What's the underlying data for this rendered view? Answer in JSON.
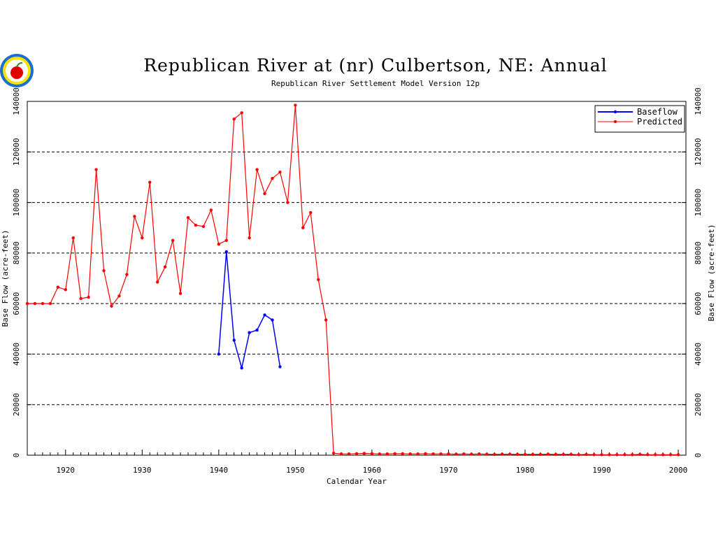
{
  "chart_data": {
    "type": "line",
    "title": "Republican River at (nr) Culbertson, NE: Annual",
    "subtitle": "Republican River Settlement Model Version 12p",
    "xlabel": "Calendar Year",
    "ylabel": "Base Flow (acre-feet)",
    "ylabel_right": "Base Flow (acre-feet)",
    "xlim": [
      1915,
      2001
    ],
    "ylim": [
      0,
      140000
    ],
    "x_ticks": [
      1920,
      1930,
      1940,
      1950,
      1960,
      1970,
      1980,
      1990,
      2000
    ],
    "y_ticks": [
      0,
      20000,
      40000,
      60000,
      80000,
      100000,
      120000,
      140000
    ],
    "grid": "horizontal dashed",
    "legend_position": "top-right",
    "colors": {
      "baseflow": "#0000ff",
      "predicted": "#ff0000"
    },
    "series": [
      {
        "name": "Baseflow",
        "x": [
          1940,
          1941,
          1942,
          1943,
          1944,
          1945,
          1946,
          1947,
          1948
        ],
        "values": [
          40000,
          80500,
          45500,
          34500,
          48500,
          49500,
          55500,
          53500,
          35000
        ]
      },
      {
        "name": "Predicted",
        "x": [
          1915,
          1916,
          1917,
          1918,
          1919,
          1920,
          1921,
          1922,
          1923,
          1924,
          1925,
          1926,
          1927,
          1928,
          1929,
          1930,
          1931,
          1932,
          1933,
          1934,
          1935,
          1936,
          1937,
          1938,
          1939,
          1940,
          1941,
          1942,
          1943,
          1944,
          1945,
          1946,
          1947,
          1948,
          1949,
          1950,
          1951,
          1952,
          1953,
          1954,
          1955,
          1956,
          1957,
          1958,
          1959,
          1960,
          1961,
          1962,
          1963,
          1964,
          1965,
          1966,
          1967,
          1968,
          1969,
          1970,
          1971,
          1972,
          1973,
          1974,
          1975,
          1976,
          1977,
          1978,
          1979,
          1980,
          1981,
          1982,
          1983,
          1984,
          1985,
          1986,
          1987,
          1988,
          1989,
          1990,
          1991,
          1992,
          1993,
          1994,
          1995,
          1996,
          1997,
          1998,
          1999,
          2000
        ],
        "values": [
          60000,
          60000,
          60000,
          60000,
          66500,
          65500,
          86000,
          62000,
          62500,
          113000,
          73000,
          59000,
          63000,
          71500,
          94500,
          86000,
          108000,
          68500,
          74500,
          85000,
          64000,
          94000,
          91000,
          90500,
          97000,
          83500,
          85000,
          133000,
          135500,
          86000,
          113000,
          103500,
          109500,
          112000,
          100000,
          138500,
          90000,
          96000,
          69500,
          53500,
          800,
          500,
          500,
          600,
          700,
          600,
          500,
          500,
          600,
          600,
          500,
          500,
          600,
          500,
          500,
          500,
          400,
          500,
          400,
          500,
          400,
          300,
          400,
          400,
          300,
          300,
          300,
          300,
          400,
          300,
          300,
          300,
          200,
          300,
          200,
          200,
          200,
          200,
          200,
          200,
          300,
          200,
          200,
          200,
          200,
          200
        ]
      }
    ]
  }
}
